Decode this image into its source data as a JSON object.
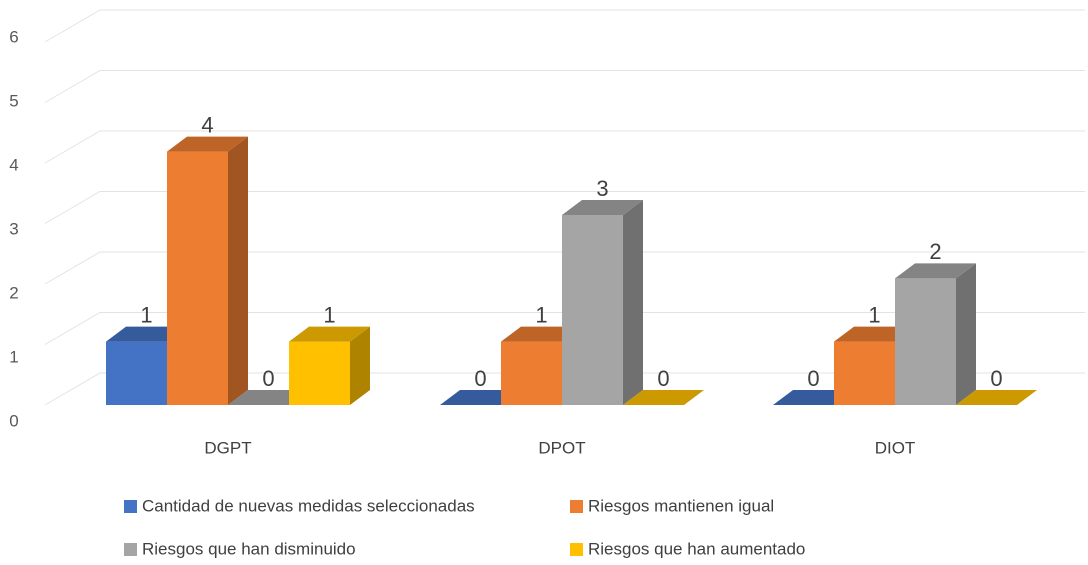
{
  "chart_data": {
    "type": "bar3d",
    "categories": [
      "DGPT",
      "DPOT",
      "DIOT"
    ],
    "series": [
      {
        "name": "Cantidad de nuevas medidas seleccionadas",
        "color": "#4472c4",
        "values": [
          1,
          0,
          0
        ]
      },
      {
        "name": "Riesgos mantienen igual",
        "color": "#ed7d31",
        "values": [
          4,
          1,
          1
        ]
      },
      {
        "name": "Riesgos que han disminuido",
        "color": "#a5a5a5",
        "values": [
          0,
          3,
          2
        ]
      },
      {
        "name": "Riesgos que han aumentado",
        "color": "#ffc000",
        "values": [
          1,
          0,
          0
        ]
      }
    ],
    "ylim": [
      0,
      6
    ],
    "yticks": [
      0,
      1,
      2,
      3,
      4,
      5,
      6
    ],
    "grid": true,
    "legend": "bottom"
  }
}
